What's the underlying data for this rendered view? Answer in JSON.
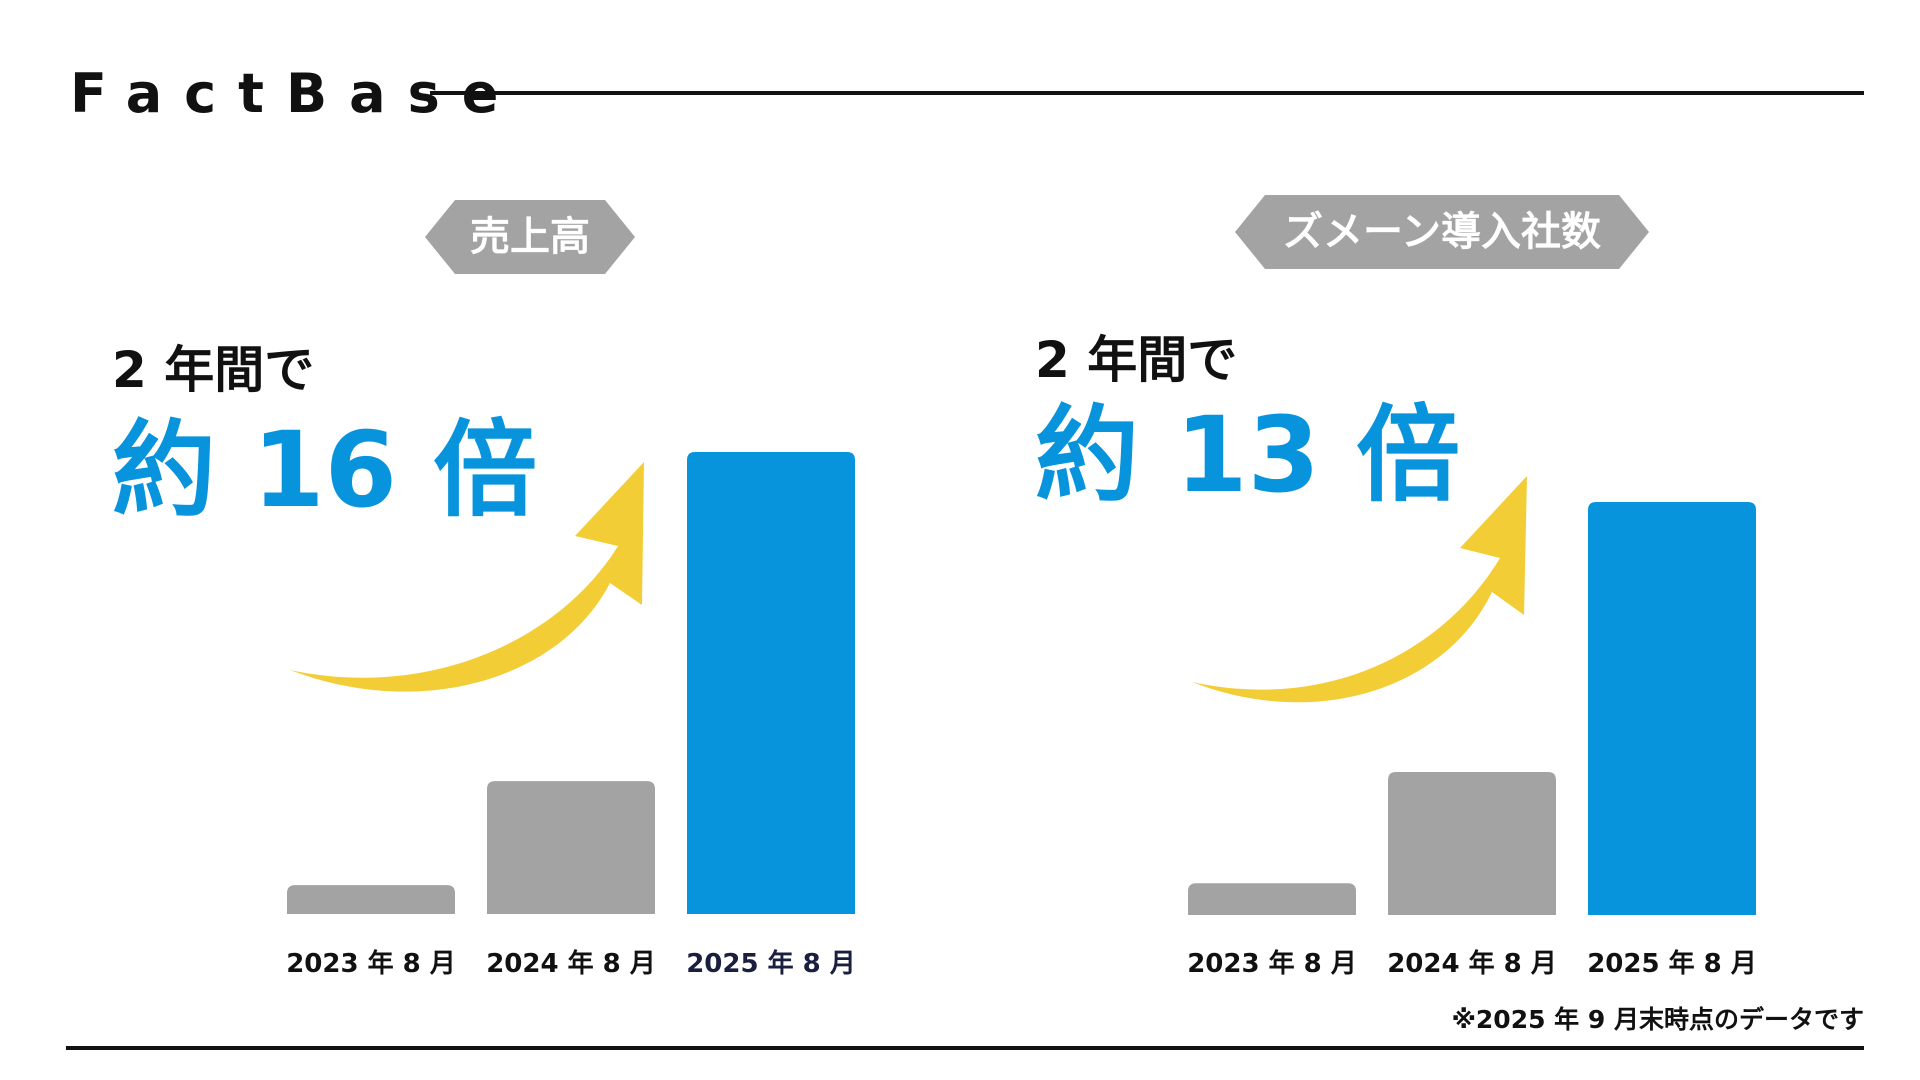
{
  "brand": {
    "name": "FactBase"
  },
  "colors": {
    "accent_blue": "#0894dc",
    "bar_gray": "#a3a3a3",
    "arrow_yellow": "#f3cd35",
    "label_dark": "#1a1f3f"
  },
  "left_panel": {
    "tag": "売上高",
    "lead": "2 年間で",
    "highlight": "約 16 倍"
  },
  "right_panel": {
    "tag": "ズメーン導入社数",
    "lead": "2 年間で",
    "highlight": "約 13 倍"
  },
  "chart_data": [
    {
      "type": "bar",
      "categories": [
        "2023 年 8 月",
        "2024 年 8 月",
        "2025 年 8 月"
      ],
      "values": [
        1,
        4.6,
        16
      ],
      "highlight_index": 2,
      "ylim": [
        0,
        16
      ],
      "xlabel": "",
      "ylabel": ""
    },
    {
      "type": "bar",
      "categories": [
        "2023 年 8 月",
        "2024 年 8 月",
        "2025 年 8 月"
      ],
      "values": [
        1,
        4.5,
        13
      ],
      "highlight_index": 2,
      "ylim": [
        0,
        13
      ],
      "xlabel": "",
      "ylabel": ""
    }
  ],
  "footnote": "※2025 年 9 月末時点のデータです"
}
